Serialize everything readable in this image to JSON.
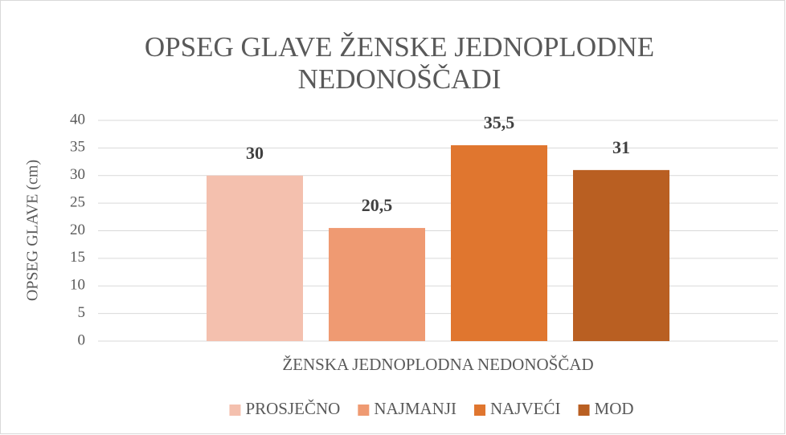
{
  "chart_data": {
    "type": "bar",
    "title": [
      "OPSEG GLAVE ŽENSKE JEDNOPLODNE",
      "NEDONOŠČADI"
    ],
    "y_label": "OPSEG GLAVE (cm)",
    "categories": [
      "ŽENSKA JEDNOPLODNA NEDONOŠČAD"
    ],
    "series": [
      {
        "name": "PROSJEČNO",
        "color": "#f4c0ae",
        "values": [
          30
        ]
      },
      {
        "name": "NAJMANJI",
        "color": "#ef9a72",
        "values": [
          20.5
        ],
        "value_labels": [
          "20,5"
        ]
      },
      {
        "name": "NAJVEĆI",
        "color": "#e0762f",
        "values": [
          35.5
        ],
        "value_labels": [
          "35,5"
        ]
      },
      {
        "name": "MOD",
        "color": "#b95f22",
        "values": [
          31
        ]
      }
    ],
    "ylim": [
      0,
      40
    ],
    "yticks": [
      0,
      5,
      10,
      15,
      20,
      25,
      30,
      35,
      40
    ],
    "grid": true,
    "legend": "bottom"
  }
}
